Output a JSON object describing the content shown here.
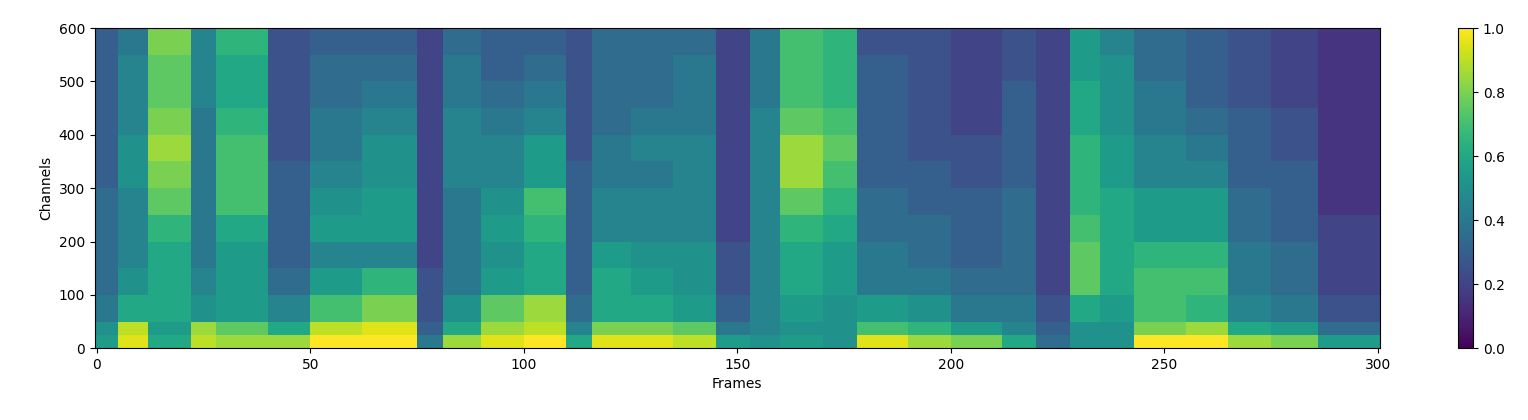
{
  "chart_data": {
    "type": "heatmap",
    "x_label": "Frames",
    "y_label": "Channels",
    "xlim": [
      -0.5,
      300.5
    ],
    "xticks": [
      0,
      50,
      100,
      150,
      200,
      250,
      300
    ],
    "ylim": [
      0,
      600
    ],
    "yticks": [
      0,
      100,
      200,
      300,
      400,
      500,
      600
    ],
    "frame_edges": [
      -0.5,
      5,
      12,
      22,
      28,
      40,
      50,
      62,
      75,
      81,
      90,
      100,
      110,
      116,
      125,
      135,
      145,
      153,
      160,
      170,
      178,
      190,
      200,
      212,
      220,
      228,
      235,
      243,
      255,
      265,
      275,
      286,
      300.5
    ],
    "channel_edges": [
      0,
      25,
      50,
      100,
      150,
      200,
      250,
      300,
      350,
      400,
      450,
      500,
      550,
      600
    ],
    "cells": [
      [
        0.55,
        0.95,
        0.6,
        0.9,
        0.85,
        0.85,
        1.0,
        1.0,
        0.4,
        0.85,
        0.95,
        1.0,
        0.6,
        0.95,
        0.95,
        0.9,
        0.55,
        0.5,
        0.55,
        0.5,
        0.95,
        0.85,
        0.8,
        0.6,
        0.35,
        0.5,
        0.5,
        1.0,
        1.0,
        0.85,
        0.8,
        0.55
      ],
      [
        0.5,
        0.9,
        0.55,
        0.85,
        0.75,
        0.6,
        0.9,
        0.95,
        0.3,
        0.6,
        0.85,
        0.9,
        0.45,
        0.8,
        0.8,
        0.75,
        0.4,
        0.45,
        0.5,
        0.5,
        0.7,
        0.65,
        0.55,
        0.45,
        0.3,
        0.5,
        0.5,
        0.8,
        0.85,
        0.6,
        0.55,
        0.35
      ],
      [
        0.4,
        0.6,
        0.6,
        0.5,
        0.55,
        0.45,
        0.7,
        0.8,
        0.25,
        0.5,
        0.75,
        0.85,
        0.35,
        0.6,
        0.6,
        0.55,
        0.3,
        0.45,
        0.55,
        0.5,
        0.55,
        0.5,
        0.4,
        0.4,
        0.25,
        0.6,
        0.55,
        0.7,
        0.65,
        0.45,
        0.4,
        0.25
      ],
      [
        0.35,
        0.5,
        0.6,
        0.45,
        0.55,
        0.35,
        0.55,
        0.65,
        0.25,
        0.4,
        0.55,
        0.6,
        0.3,
        0.6,
        0.55,
        0.5,
        0.25,
        0.45,
        0.6,
        0.55,
        0.4,
        0.4,
        0.35,
        0.35,
        0.2,
        0.75,
        0.6,
        0.7,
        0.7,
        0.4,
        0.35,
        0.2
      ],
      [
        0.35,
        0.45,
        0.6,
        0.4,
        0.55,
        0.3,
        0.45,
        0.45,
        0.2,
        0.4,
        0.5,
        0.6,
        0.3,
        0.55,
        0.5,
        0.5,
        0.25,
        0.45,
        0.6,
        0.55,
        0.4,
        0.35,
        0.3,
        0.35,
        0.2,
        0.75,
        0.6,
        0.65,
        0.65,
        0.4,
        0.35,
        0.2
      ],
      [
        0.35,
        0.45,
        0.65,
        0.4,
        0.6,
        0.3,
        0.55,
        0.55,
        0.2,
        0.4,
        0.55,
        0.65,
        0.3,
        0.45,
        0.45,
        0.45,
        0.2,
        0.45,
        0.65,
        0.6,
        0.35,
        0.35,
        0.3,
        0.35,
        0.2,
        0.7,
        0.6,
        0.55,
        0.55,
        0.35,
        0.3,
        0.2
      ],
      [
        0.35,
        0.45,
        0.75,
        0.4,
        0.7,
        0.3,
        0.5,
        0.55,
        0.2,
        0.4,
        0.5,
        0.7,
        0.3,
        0.45,
        0.45,
        0.45,
        0.2,
        0.45,
        0.75,
        0.65,
        0.35,
        0.3,
        0.3,
        0.35,
        0.2,
        0.65,
        0.6,
        0.55,
        0.55,
        0.35,
        0.3,
        0.15
      ],
      [
        0.3,
        0.5,
        0.8,
        0.4,
        0.7,
        0.3,
        0.45,
        0.5,
        0.2,
        0.45,
        0.45,
        0.55,
        0.3,
        0.4,
        0.4,
        0.45,
        0.2,
        0.45,
        0.85,
        0.7,
        0.3,
        0.3,
        0.25,
        0.3,
        0.2,
        0.65,
        0.55,
        0.45,
        0.45,
        0.3,
        0.3,
        0.15
      ],
      [
        0.3,
        0.5,
        0.85,
        0.4,
        0.7,
        0.25,
        0.4,
        0.5,
        0.2,
        0.45,
        0.45,
        0.55,
        0.25,
        0.4,
        0.45,
        0.45,
        0.2,
        0.45,
        0.85,
        0.75,
        0.3,
        0.25,
        0.25,
        0.3,
        0.2,
        0.65,
        0.55,
        0.45,
        0.4,
        0.3,
        0.25,
        0.15
      ],
      [
        0.3,
        0.45,
        0.8,
        0.4,
        0.65,
        0.25,
        0.4,
        0.45,
        0.2,
        0.45,
        0.4,
        0.45,
        0.25,
        0.35,
        0.4,
        0.4,
        0.2,
        0.45,
        0.75,
        0.7,
        0.3,
        0.25,
        0.2,
        0.3,
        0.2,
        0.6,
        0.5,
        0.4,
        0.35,
        0.3,
        0.25,
        0.15
      ],
      [
        0.3,
        0.45,
        0.75,
        0.45,
        0.6,
        0.25,
        0.35,
        0.4,
        0.2,
        0.4,
        0.35,
        0.4,
        0.25,
        0.35,
        0.35,
        0.4,
        0.2,
        0.4,
        0.7,
        0.65,
        0.3,
        0.25,
        0.2,
        0.3,
        0.2,
        0.6,
        0.5,
        0.4,
        0.3,
        0.25,
        0.2,
        0.15
      ],
      [
        0.3,
        0.45,
        0.75,
        0.45,
        0.6,
        0.25,
        0.35,
        0.35,
        0.2,
        0.4,
        0.3,
        0.35,
        0.25,
        0.35,
        0.35,
        0.4,
        0.2,
        0.4,
        0.7,
        0.65,
        0.3,
        0.25,
        0.2,
        0.25,
        0.2,
        0.55,
        0.5,
        0.35,
        0.3,
        0.25,
        0.2,
        0.15
      ],
      [
        0.3,
        0.4,
        0.8,
        0.45,
        0.65,
        0.25,
        0.3,
        0.3,
        0.2,
        0.35,
        0.3,
        0.3,
        0.25,
        0.35,
        0.35,
        0.35,
        0.2,
        0.4,
        0.7,
        0.65,
        0.25,
        0.25,
        0.2,
        0.25,
        0.2,
        0.55,
        0.45,
        0.35,
        0.3,
        0.25,
        0.2,
        0.15
      ]
    ],
    "colorbar_range": [
      0,
      1
    ],
    "colorbar_ticks": [
      {
        "value": 0,
        "label": "0.0"
      },
      0.2,
      0.4,
      0.6,
      0.8,
      {
        "value": 1,
        "label": "1.0"
      }
    ]
  }
}
